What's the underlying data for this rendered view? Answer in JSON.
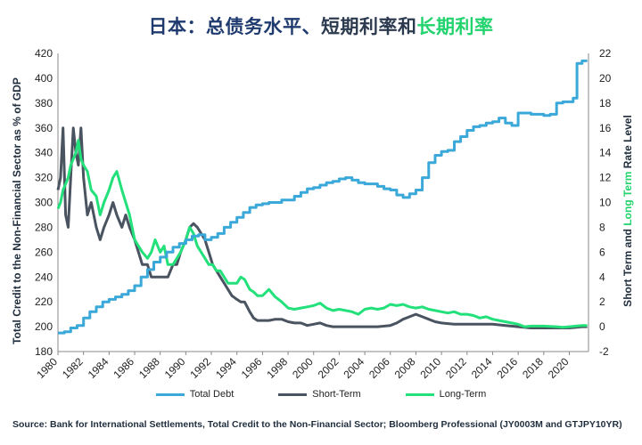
{
  "title": {
    "part1": "日本：总债务水平、",
    "part2": "短期利率和",
    "part3": "长期利率"
  },
  "source": "Source: Bank for International Settlements, Total Credit to the Non-Financial Sector; Bloomberg Professional (JY0003M and GTJPY10YR)",
  "colors": {
    "total_debt": "#3aa8d8",
    "short_term": "#4a5360",
    "long_term": "#22e07a",
    "title_navy": "#1f3a6e",
    "axis_text": "#1f2d3d"
  },
  "chart_data": {
    "type": "line",
    "title": "日本：总债务水平、短期利率和长期利率",
    "ylabel_left": "Total Credit to the Non-Financial Sector as % of GDP",
    "ylabel_right_parts": [
      "Short Term",
      " and ",
      "Long Term",
      " Rate Level"
    ],
    "xlim": [
      1980,
      2021.5
    ],
    "ylim_left": [
      180,
      420
    ],
    "ylim_right": [
      -2,
      22
    ],
    "x_ticks": [
      "1980",
      "1982",
      "1984",
      "1986",
      "1988",
      "1990",
      "1992",
      "1994",
      "1996",
      "1998",
      "2000",
      "2002",
      "2004",
      "2006",
      "2008",
      "2010",
      "2012",
      "2014",
      "2016",
      "2018",
      "2020"
    ],
    "y_left_ticks": [
      "180",
      "200",
      "220",
      "240",
      "260",
      "280",
      "300",
      "320",
      "340",
      "360",
      "380",
      "400",
      "420"
    ],
    "y_right_ticks": [
      "-2",
      "0",
      "2",
      "4",
      "6",
      "8",
      "10",
      "12",
      "14",
      "16",
      "18",
      "20",
      "22"
    ],
    "legend_position": "bottom",
    "grid": false,
    "series": [
      {
        "name": "Total Debt",
        "axis": "left",
        "x": [
          1980,
          1980.5,
          1981,
          1981.5,
          1982,
          1982.5,
          1983,
          1983.5,
          1984,
          1984.5,
          1985,
          1985.5,
          1986,
          1986.5,
          1987,
          1987.5,
          1988,
          1988.5,
          1989,
          1989.5,
          1990,
          1990.5,
          1991,
          1991.5,
          1992,
          1992.5,
          1993,
          1993.5,
          1994,
          1994.5,
          1995,
          1995.5,
          1996,
          1996.5,
          1997,
          1997.5,
          1998,
          1998.5,
          1999,
          1999.5,
          2000,
          2000.5,
          2001,
          2001.5,
          2002,
          2002.5,
          2003,
          2003.5,
          2004,
          2004.5,
          2005,
          2005.5,
          2006,
          2006.5,
          2007,
          2007.5,
          2008,
          2008.5,
          2009,
          2009.5,
          2010,
          2010.5,
          2011,
          2011.5,
          2012,
          2012.5,
          2013,
          2013.5,
          2014,
          2014.5,
          2015,
          2015.5,
          2016,
          2016.5,
          2017,
          2017.5,
          2018,
          2018.5,
          2019,
          2019.5,
          2020,
          2020.3,
          2020.6,
          2021,
          2021.4
        ],
        "values": [
          195,
          196,
          199,
          201,
          207,
          212,
          216,
          220,
          222,
          224,
          226,
          229,
          233,
          240,
          246,
          252,
          256,
          260,
          264,
          267,
          270,
          273,
          274,
          270,
          272,
          275,
          280,
          284,
          288,
          292,
          296,
          298,
          299,
          300,
          300,
          302,
          302,
          305,
          308,
          311,
          312,
          314,
          316,
          317,
          319,
          320,
          318,
          316,
          315,
          315,
          313,
          311,
          310,
          306,
          304,
          307,
          310,
          320,
          332,
          338,
          341,
          342,
          349,
          353,
          358,
          361,
          362,
          364,
          365,
          368,
          364,
          362,
          372,
          372,
          371,
          371,
          370,
          371,
          380,
          381,
          381,
          384,
          412,
          414,
          414
        ]
      },
      {
        "name": "Short-Term",
        "axis": "right",
        "x": [
          1980,
          1980.2,
          1980.4,
          1980.6,
          1980.8,
          1981,
          1981.2,
          1981.4,
          1981.6,
          1981.8,
          1982,
          1982.3,
          1982.6,
          1983,
          1983.3,
          1983.6,
          1984,
          1984.3,
          1984.6,
          1985,
          1985.3,
          1985.6,
          1986,
          1986.3,
          1986.6,
          1987,
          1987.3,
          1987.6,
          1988,
          1988.3,
          1988.6,
          1989,
          1989.3,
          1989.6,
          1990,
          1990.3,
          1990.6,
          1990.9,
          1991.2,
          1991.5,
          1991.8,
          1992.1,
          1992.4,
          1992.7,
          1993,
          1993.3,
          1993.6,
          1994,
          1994.3,
          1994.6,
          1995,
          1995.3,
          1995.6,
          1996,
          1996.5,
          1997,
          1997.5,
          1998,
          1998.5,
          1999,
          1999.5,
          2000,
          2000.5,
          2001,
          2001.5,
          2002,
          2003,
          2004,
          2005,
          2006,
          2006.5,
          2007,
          2007.5,
          2008,
          2008.5,
          2009,
          2009.5,
          2010,
          2011,
          2012,
          2013,
          2014,
          2015,
          2016,
          2017,
          2018,
          2019,
          2020,
          2021,
          2021.4
        ],
        "values": [
          11,
          12,
          16,
          9,
          8,
          12,
          16,
          14,
          13,
          16,
          12,
          9,
          10,
          8,
          7,
          8,
          9,
          10,
          9,
          8,
          9,
          8,
          7,
          6,
          5,
          5,
          4,
          4,
          4,
          4,
          4,
          5,
          5,
          6,
          7,
          8,
          8.3,
          8,
          7.5,
          7,
          6,
          5,
          4.5,
          4,
          3.5,
          3,
          2.5,
          2.2,
          2,
          2,
          1.2,
          0.7,
          0.5,
          0.5,
          0.5,
          0.6,
          0.6,
          0.4,
          0.3,
          0.3,
          0.1,
          0.2,
          0.3,
          0.1,
          0,
          0,
          0,
          0,
          0,
          0.1,
          0.3,
          0.6,
          0.8,
          1,
          0.8,
          0.6,
          0.4,
          0.3,
          0.2,
          0.2,
          0.2,
          0.2,
          0.1,
          0,
          -0.1,
          -0.1,
          -0.1,
          -0.1,
          0,
          0
        ]
      },
      {
        "name": "Long-Term",
        "axis": "right",
        "x": [
          1980,
          1980.2,
          1980.4,
          1980.6,
          1980.8,
          1981,
          1981.2,
          1981.4,
          1981.6,
          1981.8,
          1982,
          1982.3,
          1982.6,
          1983,
          1983.3,
          1983.6,
          1984,
          1984.3,
          1984.6,
          1985,
          1985.3,
          1985.6,
          1986,
          1986.3,
          1986.6,
          1987,
          1987.3,
          1987.6,
          1988,
          1988.3,
          1988.6,
          1989,
          1989.3,
          1989.6,
          1990,
          1990.3,
          1990.6,
          1990.9,
          1991.2,
          1991.5,
          1991.8,
          1992.1,
          1992.4,
          1992.7,
          1993,
          1993.3,
          1993.6,
          1994,
          1994.3,
          1994.6,
          1995,
          1995.3,
          1995.6,
          1996,
          1996.5,
          1997,
          1997.5,
          1998,
          1998.5,
          1999,
          1999.5,
          2000,
          2000.5,
          2001,
          2001.5,
          2002,
          2002.5,
          2003,
          2003.5,
          2004,
          2004.5,
          2005,
          2005.5,
          2006,
          2006.5,
          2007,
          2007.5,
          2008,
          2008.5,
          2009,
          2009.5,
          2010,
          2010.5,
          2011,
          2011.5,
          2012,
          2012.5,
          2013,
          2013.5,
          2014,
          2014.5,
          2015,
          2015.5,
          2016,
          2016.5,
          2017,
          2018,
          2019,
          2019.5,
          2020,
          2020.5,
          2021,
          2021.4
        ],
        "values": [
          9.5,
          10,
          11,
          11.5,
          12,
          13,
          13.5,
          14,
          15,
          13.5,
          13,
          12.5,
          11,
          10.5,
          9,
          10,
          11,
          12,
          12.5,
          11,
          10,
          9,
          7,
          6.5,
          6,
          5.5,
          6,
          7,
          6,
          6.5,
          5,
          5,
          5.5,
          6,
          7,
          8,
          7.5,
          6.5,
          6,
          5.5,
          5,
          5,
          4.5,
          4.5,
          4,
          3.5,
          3.5,
          3.5,
          4,
          3.8,
          3,
          2.8,
          2.5,
          2.5,
          3,
          2.4,
          2,
          1.5,
          1.4,
          1.5,
          1.6,
          1.7,
          1.9,
          1.5,
          1.3,
          1.4,
          1.3,
          1.2,
          1.0,
          1.4,
          1.5,
          1.4,
          1.5,
          1.8,
          1.7,
          1.8,
          1.6,
          1.5,
          1.6,
          1.4,
          1.3,
          1.2,
          1.1,
          1.2,
          1.0,
          1.0,
          0.9,
          0.7,
          0.8,
          0.6,
          0.5,
          0.4,
          0.3,
          0.2,
          0,
          0.05,
          0.05,
          0,
          -0.05,
          0,
          0.05,
          0.1,
          0.1
        ]
      }
    ]
  }
}
